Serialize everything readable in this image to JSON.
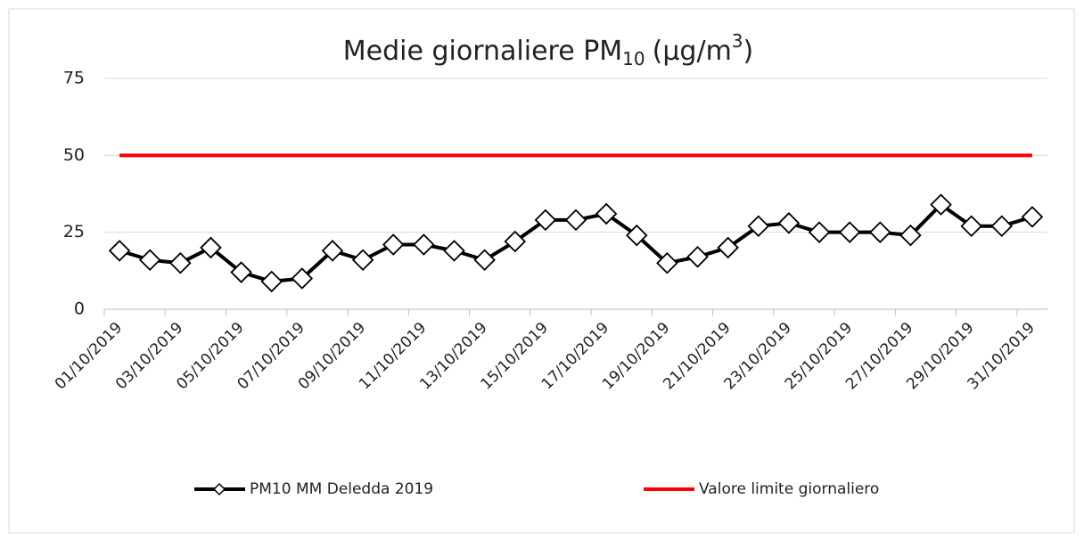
{
  "chart_data": {
    "type": "line",
    "title": [
      "Medie giornaliere PM",
      "10",
      "(µg/m",
      "3",
      ")"
    ],
    "categories": [
      "01/10/2019",
      null,
      "03/10/2019",
      null,
      "05/10/2019",
      null,
      "07/10/2019",
      null,
      "09/10/2019",
      null,
      "11/10/2019",
      null,
      "13/10/2019",
      null,
      "15/10/2019",
      null,
      "17/10/2019",
      null,
      "19/10/2019",
      null,
      "21/10/2019",
      null,
      "23/10/2019",
      null,
      "25/10/2019",
      null,
      "27/10/2019",
      null,
      "29/10/2019",
      null,
      "31/10/2019"
    ],
    "series": [
      {
        "name": "PM10 MM Deledda 2019",
        "color": "#000000",
        "marker": "diamond",
        "values": [
          19,
          16,
          15,
          20,
          12,
          9,
          10,
          19,
          16,
          21,
          21,
          19,
          16,
          22,
          29,
          29,
          31,
          24,
          15,
          17,
          20,
          27,
          28,
          25,
          25,
          25,
          24,
          34,
          27,
          27,
          30
        ]
      },
      {
        "name": "Valore limite giornaliero",
        "color": "#ff0000",
        "values": [
          50,
          50,
          50,
          50,
          50,
          50,
          50,
          50,
          50,
          50,
          50,
          50,
          50,
          50,
          50,
          50,
          50,
          50,
          50,
          50,
          50,
          50,
          50,
          50,
          50,
          50,
          50,
          50,
          50,
          50,
          50
        ]
      }
    ],
    "ylim": [
      0,
      75
    ],
    "yticks": [
      0,
      25,
      50,
      75
    ],
    "grid": true,
    "legend": "bottom"
  }
}
